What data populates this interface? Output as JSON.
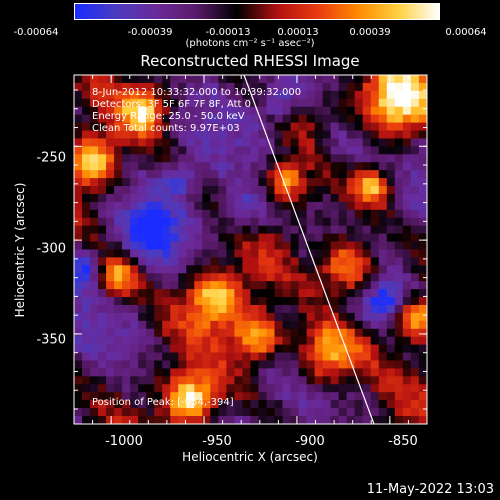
{
  "colors": {
    "background": "#000000",
    "text": "#ffffff",
    "colormap": [
      "#1a2cff",
      "#4a3cc0",
      "#6a2a9a",
      "#5a1a6a",
      "#000000",
      "#b01010",
      "#e83a10",
      "#ff8a00",
      "#ffd040",
      "#ffffff"
    ]
  },
  "colorbar": {
    "ticks": [
      "-0.00064",
      "-0.00039",
      "-0.00013",
      "0.00013",
      "0.00039",
      "0.00064"
    ],
    "unit": "(photons cm⁻² s⁻¹ asec⁻²)"
  },
  "chart_data": {
    "type": "heatmap",
    "title": "Reconstructed RHESSI Image",
    "xlabel": "Heliocentric X (arcsec)",
    "ylabel": "Heliocentric Y (arcsec)",
    "xlim": [
      -1020,
      -830
    ],
    "ylim": [
      -398,
      -212
    ],
    "x_ticks": [
      "-1000",
      "-950",
      "-900",
      "-850"
    ],
    "x_tick_values": [
      -1000,
      -950,
      -900,
      -850
    ],
    "y_ticks": [
      "-250",
      "-300",
      "-350"
    ],
    "y_tick_values": [
      -250,
      -300,
      -350
    ],
    "value_range": [
      -0.00064,
      0.00064
    ],
    "peak": {
      "x": -954,
      "y": -394
    },
    "annotations": [
      "8-Jun-2012 10:33:32.000 to 10:39:32.000",
      "Detectors: 3F 5F 6F 7F 8F, Att 0",
      "Energy Range: 25.0 - 50.0 keV",
      "Clean     Total counts: 9.97E+03"
    ],
    "peak_label": "Position of Peak: [-954,-394]",
    "grid": false
  },
  "timestamp": "11-May-2022 13:03"
}
